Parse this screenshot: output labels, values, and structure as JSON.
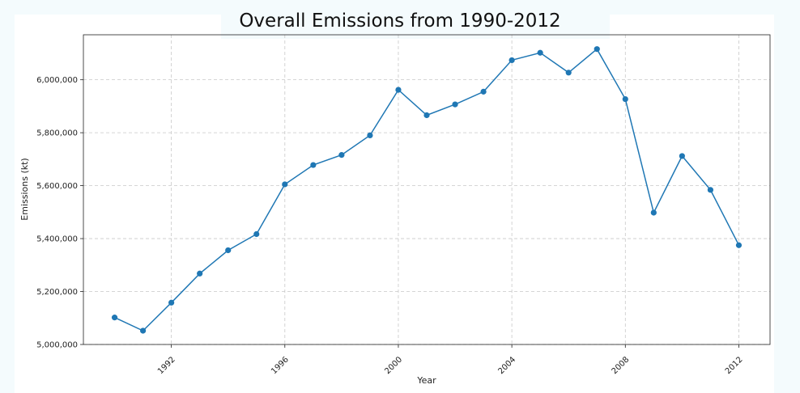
{
  "chart_data": {
    "type": "line",
    "title": "Overall Emissions from 1990-2012",
    "xlabel": "Year",
    "ylabel": "Emissions (kt)",
    "x": [
      1990,
      1991,
      1992,
      1993,
      1994,
      1995,
      1996,
      1997,
      1998,
      1999,
      2000,
      2001,
      2002,
      2003,
      2004,
      2005,
      2006,
      2007,
      2008,
      2009,
      2010,
      2011,
      2012
    ],
    "series": [
      {
        "values": [
          5102000,
          5052000,
          5158000,
          5268000,
          5356000,
          5417000,
          5605000,
          5678000,
          5716000,
          5790000,
          5962000,
          5866000,
          5907000,
          5955000,
          6074000,
          6102000,
          6027000,
          6116000,
          5927000,
          5498000,
          5712000,
          5584000,
          5375000
        ],
        "color": "#1f77b4"
      }
    ],
    "xlim": [
      1988.9,
      2013.1
    ],
    "ylim": [
      5000000,
      6170000
    ],
    "xticks": [
      1992,
      1996,
      2000,
      2004,
      2008,
      2012
    ],
    "xtick_labels": [
      "1992",
      "1996",
      "2000",
      "2004",
      "2008",
      "2012"
    ],
    "yticks": [
      5000000,
      5200000,
      5400000,
      5600000,
      5800000,
      6000000
    ],
    "ytick_labels": [
      "5,000,000",
      "5,200,000",
      "5,400,000",
      "5,600,000",
      "5,800,000",
      "6,000,000"
    ],
    "grid": true,
    "grid_style": "dashed",
    "markers": "circle"
  }
}
